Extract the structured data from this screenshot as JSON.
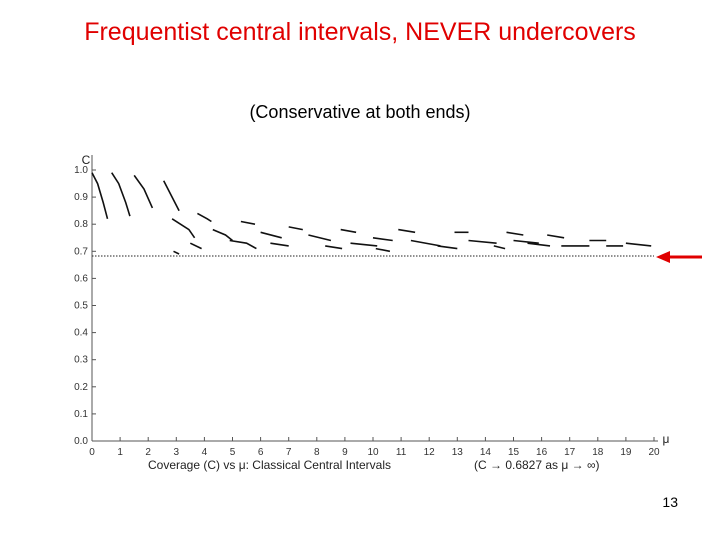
{
  "slide": {
    "title": "Frequentist central intervals, NEVER undercovers",
    "subtitle": "(Conservative at both ends)",
    "page_number": "13"
  },
  "chart_data": {
    "type": "line",
    "title": "",
    "xlabel": "Coverage (C) vs μ: Classical Central Intervals",
    "xlabel_note": "(C → 0.6827 as μ → ∞)",
    "ylabel": "C",
    "x_symbol": "μ",
    "xlim": [
      0,
      20
    ],
    "ylim": [
      0,
      1.0
    ],
    "x_ticks": [
      "0",
      "1",
      "2",
      "3",
      "4",
      "5",
      "6",
      "7",
      "8",
      "9",
      "10",
      "11",
      "12",
      "13",
      "14",
      "15",
      "16",
      "17",
      "18",
      "19",
      "20"
    ],
    "y_ticks": [
      "0.0",
      "0.1",
      "0.2",
      "0.3",
      "0.4",
      "0.5",
      "0.6",
      "0.7",
      "0.8",
      "0.9",
      "1.0"
    ],
    "reference_line": {
      "y": 0.6827,
      "style": "dotted"
    },
    "arrow_color": "#e00000",
    "series": [
      {
        "segments": [
          [
            [
              0.0,
              0.99
            ],
            [
              0.2,
              0.95
            ],
            [
              0.4,
              0.88
            ],
            [
              0.55,
              0.82
            ]
          ],
          [
            [
              0.7,
              0.99
            ],
            [
              0.95,
              0.95
            ],
            [
              1.2,
              0.88
            ],
            [
              1.35,
              0.83
            ]
          ],
          [
            [
              1.5,
              0.98
            ],
            [
              1.85,
              0.93
            ],
            [
              2.15,
              0.86
            ]
          ],
          [
            [
              2.55,
              0.96
            ],
            [
              2.85,
              0.9
            ],
            [
              3.1,
              0.85
            ]
          ],
          [
            [
              2.85,
              0.82
            ],
            [
              3.45,
              0.78
            ],
            [
              3.65,
              0.75
            ]
          ],
          [
            [
              2.9,
              0.7
            ],
            [
              3.1,
              0.69
            ]
          ],
          [
            [
              3.75,
              0.84
            ],
            [
              4.1,
              0.82
            ],
            [
              4.25,
              0.81
            ]
          ],
          [
            [
              3.5,
              0.73
            ],
            [
              3.9,
              0.71
            ]
          ],
          [
            [
              4.3,
              0.78
            ],
            [
              4.75,
              0.76
            ],
            [
              5.0,
              0.74
            ]
          ],
          [
            [
              4.9,
              0.74
            ],
            [
              5.5,
              0.73
            ],
            [
              5.85,
              0.71
            ]
          ],
          [
            [
              5.3,
              0.81
            ],
            [
              5.8,
              0.8
            ]
          ],
          [
            [
              6.0,
              0.77
            ],
            [
              6.75,
              0.75
            ]
          ],
          [
            [
              6.35,
              0.73
            ],
            [
              7.0,
              0.72
            ]
          ],
          [
            [
              7.0,
              0.79
            ],
            [
              7.5,
              0.78
            ]
          ],
          [
            [
              7.7,
              0.76
            ],
            [
              8.5,
              0.74
            ]
          ],
          [
            [
              8.3,
              0.72
            ],
            [
              8.9,
              0.71
            ]
          ],
          [
            [
              8.85,
              0.78
            ],
            [
              9.4,
              0.77
            ]
          ],
          [
            [
              9.2,
              0.73
            ],
            [
              10.15,
              0.72
            ]
          ],
          [
            [
              10.0,
              0.75
            ],
            [
              10.7,
              0.74
            ]
          ],
          [
            [
              10.1,
              0.71
            ],
            [
              10.6,
              0.7
            ]
          ],
          [
            [
              10.9,
              0.78
            ],
            [
              11.5,
              0.77
            ]
          ],
          [
            [
              11.35,
              0.74
            ],
            [
              12.4,
              0.72
            ]
          ],
          [
            [
              12.3,
              0.72
            ],
            [
              13.0,
              0.71
            ]
          ],
          [
            [
              12.9,
              0.77
            ],
            [
              13.4,
              0.77
            ]
          ],
          [
            [
              13.4,
              0.74
            ],
            [
              14.4,
              0.73
            ]
          ],
          [
            [
              14.3,
              0.72
            ],
            [
              14.7,
              0.71
            ]
          ],
          [
            [
              14.75,
              0.77
            ],
            [
              15.35,
              0.76
            ]
          ],
          [
            [
              15.0,
              0.74
            ],
            [
              15.9,
              0.73
            ]
          ],
          [
            [
              15.5,
              0.73
            ],
            [
              16.3,
              0.72
            ]
          ],
          [
            [
              16.2,
              0.76
            ],
            [
              16.8,
              0.75
            ]
          ],
          [
            [
              16.7,
              0.72
            ],
            [
              17.7,
              0.72
            ]
          ],
          [
            [
              17.7,
              0.74
            ],
            [
              18.3,
              0.74
            ]
          ],
          [
            [
              18.3,
              0.72
            ],
            [
              18.9,
              0.72
            ]
          ],
          [
            [
              19.0,
              0.73
            ],
            [
              19.9,
              0.72
            ]
          ]
        ]
      }
    ]
  }
}
